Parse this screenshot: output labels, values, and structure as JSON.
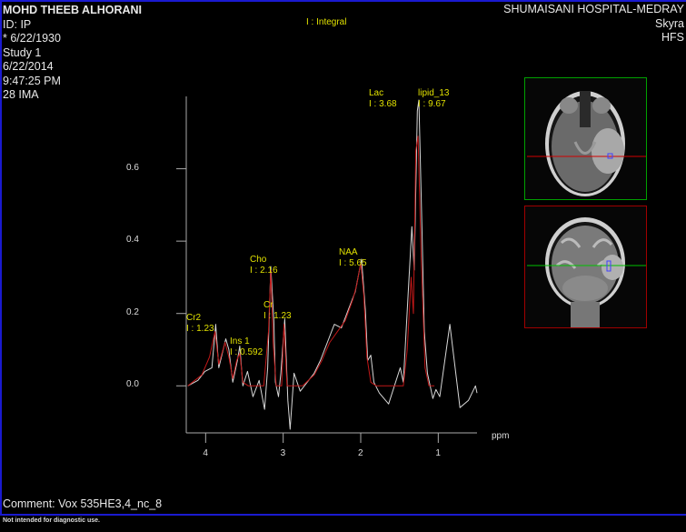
{
  "patient": {
    "name": "MOHD THEEB ALHORANI",
    "id": "ID: IP",
    "birth_date": "* 6/22/1930",
    "study": "Study 1",
    "date": "6/22/2014",
    "time": "9:47:25 PM",
    "image": "28 IMA"
  },
  "header_right": {
    "institution": "SHUMAISANI HOSPITAL-MEDRAY",
    "scanner": "Skyra",
    "position": "HFS"
  },
  "comment": "Comment: Vox 535HE3,4_nc_8",
  "disclaimer": "Not intended for diagnostic use.",
  "thumbnails": {
    "axial": {
      "border_color": "#00a000",
      "line_color": "#d00000"
    },
    "coronal": {
      "border_color": "#a00000",
      "line_color": "#00c000"
    },
    "voxel_color": "#4040ff"
  },
  "chart_data": {
    "type": "line",
    "legend": "I : Integral",
    "xlabel": "ppm",
    "x_reversed": true,
    "xlim": [
      4.25,
      0.5
    ],
    "ylim": [
      -0.13,
      0.8
    ],
    "x_ticks": [
      {
        "value": 4,
        "label": "4"
      },
      {
        "value": 3,
        "label": "3"
      },
      {
        "value": 2,
        "label": "2"
      },
      {
        "value": 1,
        "label": "1"
      }
    ],
    "y_ticks": [
      {
        "value": 0.0,
        "label": "0.0"
      },
      {
        "value": 0.2,
        "label": "0.2"
      },
      {
        "value": 0.4,
        "label": "0.4"
      },
      {
        "value": 0.6,
        "label": "0.6"
      }
    ],
    "grid": false,
    "series": [
      {
        "role": "measured",
        "color": "#d8d8d8",
        "x": [
          4.23,
          4.1,
          4.01,
          3.92,
          3.87,
          3.83,
          3.74,
          3.7,
          3.65,
          3.59,
          3.56,
          3.52,
          3.46,
          3.39,
          3.31,
          3.24,
          3.2,
          3.17,
          3.16,
          3.12,
          3.1,
          3.06,
          3.03,
          2.98,
          2.94,
          2.91,
          2.86,
          2.78,
          2.69,
          2.6,
          2.52,
          2.43,
          2.34,
          2.25,
          2.16,
          2.07,
          1.99,
          1.94,
          1.91,
          1.87,
          1.83,
          1.76,
          1.64,
          1.49,
          1.45,
          1.39,
          1.34,
          1.31,
          1.27,
          1.25,
          1.21,
          1.18,
          1.14,
          1.07,
          1.03,
          0.98,
          0.85,
          0.72,
          0.61,
          0.52,
          0.5
        ],
        "y": [
          0.0,
          0.015,
          0.04,
          0.05,
          0.17,
          0.05,
          0.13,
          0.1,
          0.01,
          0.07,
          0.11,
          0.0,
          0.04,
          -0.03,
          0.015,
          -0.065,
          0.05,
          0.26,
          0.33,
          0.18,
          0.01,
          -0.03,
          0.035,
          0.185,
          -0.04,
          -0.12,
          0.035,
          -0.015,
          0.01,
          0.035,
          0.07,
          0.12,
          0.17,
          0.16,
          0.21,
          0.26,
          0.35,
          0.21,
          0.07,
          0.085,
          0.01,
          -0.02,
          -0.05,
          0.05,
          0.01,
          0.25,
          0.44,
          0.32,
          0.76,
          0.79,
          0.435,
          0.15,
          0.035,
          -0.035,
          -0.01,
          -0.03,
          0.17,
          -0.06,
          -0.04,
          0.0,
          -0.02
        ]
      },
      {
        "role": "fit",
        "color": "#c01818",
        "x": [
          4.23,
          4.05,
          3.95,
          3.88,
          3.83,
          3.75,
          3.7,
          3.65,
          3.6,
          3.56,
          3.52,
          3.45,
          3.25,
          3.19,
          3.16,
          3.13,
          3.09,
          3.02,
          2.99,
          2.95,
          2.75,
          2.6,
          2.5,
          2.4,
          2.3,
          2.2,
          2.1,
          2.05,
          2.0,
          1.96,
          1.92,
          1.87,
          1.8,
          1.45,
          1.4,
          1.35,
          1.32,
          1.29,
          1.26,
          1.22,
          1.17,
          1.12,
          1.05
        ],
        "y": [
          0.0,
          0.03,
          0.08,
          0.15,
          0.06,
          0.12,
          0.08,
          0.02,
          0.07,
          0.09,
          0.01,
          0.0,
          0.0,
          0.15,
          0.32,
          0.12,
          0.0,
          0.0,
          0.17,
          0.0,
          0.0,
          0.03,
          0.07,
          0.12,
          0.15,
          0.18,
          0.24,
          0.28,
          0.34,
          0.25,
          0.08,
          0.01,
          0.0,
          0.0,
          0.1,
          0.3,
          0.2,
          0.65,
          0.69,
          0.35,
          0.05,
          0.0,
          0.0
        ]
      }
    ],
    "peaks": [
      {
        "name": "Cr2",
        "integral": "I : 1.23"
      },
      {
        "name": "Ins 1",
        "integral": "I : 0.592"
      },
      {
        "name": "Cho",
        "integral": "I : 2.16"
      },
      {
        "name": "Cr",
        "integral": "I : 1.23"
      },
      {
        "name": "NAA",
        "integral": "I : 5.65"
      },
      {
        "name": "Lac",
        "integral": "I : 3.68"
      },
      {
        "name": "lipid_13",
        "integral": "I : 9.67"
      }
    ]
  }
}
